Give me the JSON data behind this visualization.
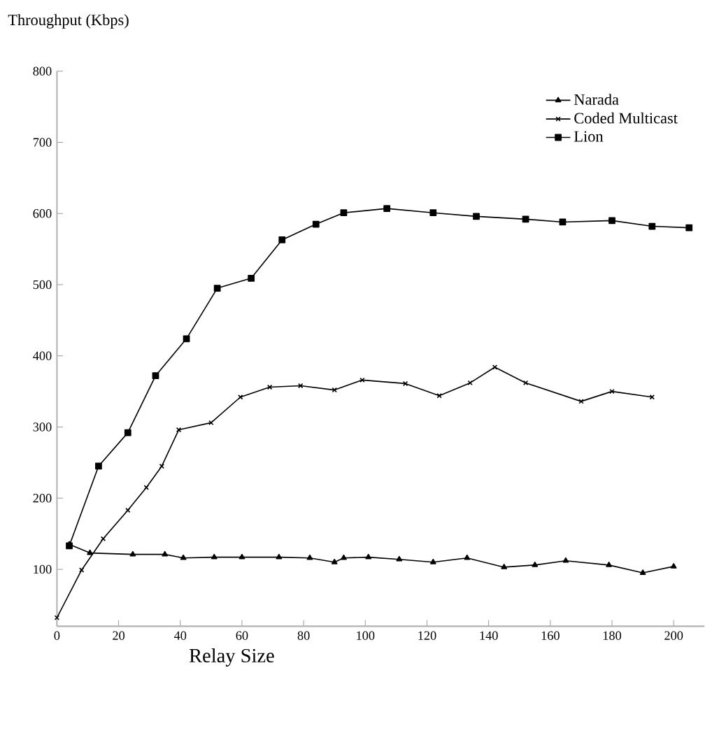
{
  "chart_data": {
    "type": "line",
    "xlabel": "Relay Size",
    "ylabel": "Throughput (Kbps)",
    "xlim": [
      0,
      210
    ],
    "ylim": [
      20,
      800
    ],
    "xticks": [
      0,
      20,
      40,
      60,
      80,
      100,
      120,
      140,
      160,
      180,
      200
    ],
    "yticks": [
      100,
      200,
      300,
      400,
      500,
      600,
      700,
      800
    ],
    "legend": "top right",
    "grid": false,
    "line_style": "solid",
    "series": [
      {
        "name": "Narada",
        "color": "#000000",
        "marker": "triangle",
        "x": [
          4,
          10.7,
          24.6,
          35,
          41,
          51,
          60,
          72,
          82,
          90,
          93,
          101,
          111,
          122,
          133,
          145,
          155,
          165,
          179,
          190,
          200
        ],
        "values": [
          135,
          123,
          121,
          121,
          116,
          117,
          117,
          117,
          116,
          110,
          116,
          117,
          114,
          110,
          116,
          103,
          106,
          112,
          106,
          95,
          104
        ]
      },
      {
        "name": "Coded Multicast",
        "color": "#000000",
        "marker": "cross",
        "x": [
          0,
          8,
          15,
          23,
          29,
          34,
          39.5,
          50,
          59.5,
          69,
          79,
          90,
          99,
          113,
          124,
          134,
          142,
          152,
          170,
          180,
          193
        ],
        "values": [
          32,
          99,
          143,
          183,
          215,
          245,
          296,
          306,
          342,
          356,
          358,
          352,
          366,
          361,
          344,
          362,
          384,
          362,
          336,
          350,
          342
        ]
      },
      {
        "name": "Lion",
        "color": "#000000",
        "marker": "square",
        "x": [
          4,
          13.5,
          23,
          32,
          42,
          52,
          63,
          73,
          84,
          93,
          107,
          122,
          136,
          152,
          164,
          180,
          193,
          205
        ],
        "values": [
          133,
          245,
          292,
          372,
          424,
          495,
          509,
          563,
          585,
          601,
          607,
          601,
          596,
          592,
          588,
          590,
          582,
          580
        ]
      }
    ]
  }
}
